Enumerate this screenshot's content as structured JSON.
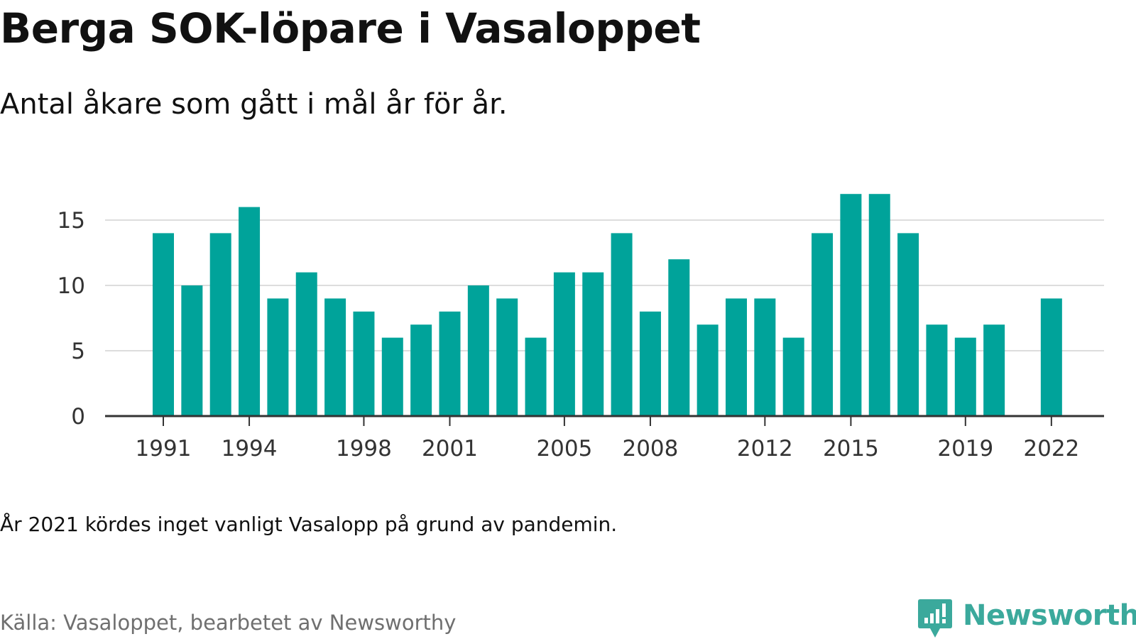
{
  "header": {
    "title": "Berga SOK-löpare i Vasaloppet",
    "subtitle": "Antal åkare som gått i mål år för år."
  },
  "footer": {
    "note": "År 2021 kördes inget vanligt Vasalopp på grund av pandemin.",
    "source": "Källa: Vasaloppet, bearbetet av Newsworthy",
    "brand": "Newsworthy"
  },
  "colors": {
    "bar": "#00a39a",
    "grid": "#dddddd",
    "axis": "#333333",
    "brand": "#3ba99c"
  },
  "chart_data": {
    "type": "bar",
    "title": "Berga SOK-löpare i Vasaloppet",
    "subtitle": "Antal åkare som gått i mål år för år.",
    "xlabel": "",
    "ylabel": "",
    "categories": [
      1991,
      1992,
      1993,
      1994,
      1995,
      1996,
      1997,
      1998,
      1999,
      2000,
      2001,
      2002,
      2003,
      2004,
      2005,
      2006,
      2007,
      2008,
      2009,
      2010,
      2011,
      2012,
      2013,
      2014,
      2015,
      2016,
      2017,
      2018,
      2019,
      2020,
      2021,
      2022
    ],
    "values": [
      14,
      10,
      14,
      16,
      9,
      11,
      9,
      8,
      6,
      7,
      8,
      10,
      9,
      6,
      11,
      11,
      14,
      8,
      12,
      7,
      9,
      9,
      6,
      14,
      17,
      17,
      14,
      7,
      6,
      7,
      null,
      9
    ],
    "x_tick_labels": [
      "1991",
      "1994",
      "1998",
      "2001",
      "2005",
      "2008",
      "2012",
      "2015",
      "2019",
      "2022"
    ],
    "y_ticks": [
      0,
      5,
      10,
      15
    ],
    "ylim": [
      0,
      18
    ],
    "grid": true,
    "legend": "none"
  }
}
